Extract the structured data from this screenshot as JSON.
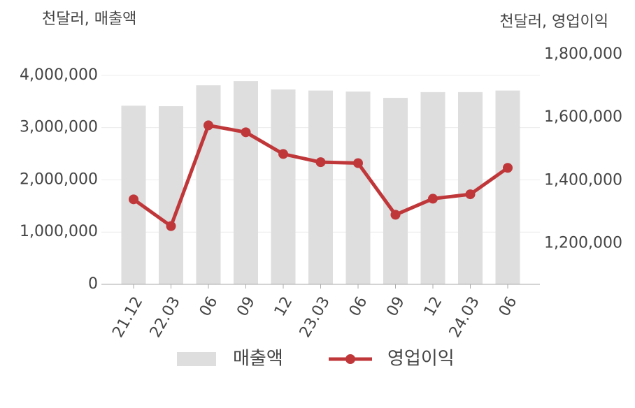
{
  "chart_data": {
    "type": "bar-line",
    "y_title": "천달러, 매출액",
    "y2_title": "천달러, 영업이익",
    "categories": [
      "21.12",
      "22.03",
      "06",
      "09",
      "12",
      "23.03",
      "06",
      "09",
      "12",
      "24.03",
      "06"
    ],
    "series": [
      {
        "name": "매출액",
        "type": "bar",
        "color": "#dedede",
        "values": [
          3420000,
          3410000,
          3810000,
          3890000,
          3730000,
          3710000,
          3690000,
          3570000,
          3680000,
          3680000,
          3710000
        ]
      },
      {
        "name": "영업이익",
        "type": "line",
        "axis": "y2",
        "color": "#c0373a",
        "values": [
          1340000,
          1255000,
          1575000,
          1553000,
          1484000,
          1458000,
          1455000,
          1291000,
          1342000,
          1356000,
          1440000
        ]
      }
    ],
    "ylim": [
      0,
      4400000
    ],
    "yticks": [
      0,
      {
        "value": 1000000,
        "label": "1,000,000"
      },
      {
        "value": 2000000,
        "label": "2,000,000"
      },
      {
        "value": 3000000,
        "label": "3,000,000"
      },
      {
        "value": 4000000,
        "label": "4,000,000"
      }
    ],
    "y2lim": [
      1070000,
      1800000
    ],
    "y2ticks": [
      {
        "value": 1200000,
        "label": "1,200,000"
      },
      {
        "value": 1400000,
        "label": "1,400,000"
      },
      {
        "value": 1600000,
        "label": "1,600,000"
      },
      {
        "value": 1800000,
        "label": "1,800,000"
      }
    ],
    "grid": true
  }
}
